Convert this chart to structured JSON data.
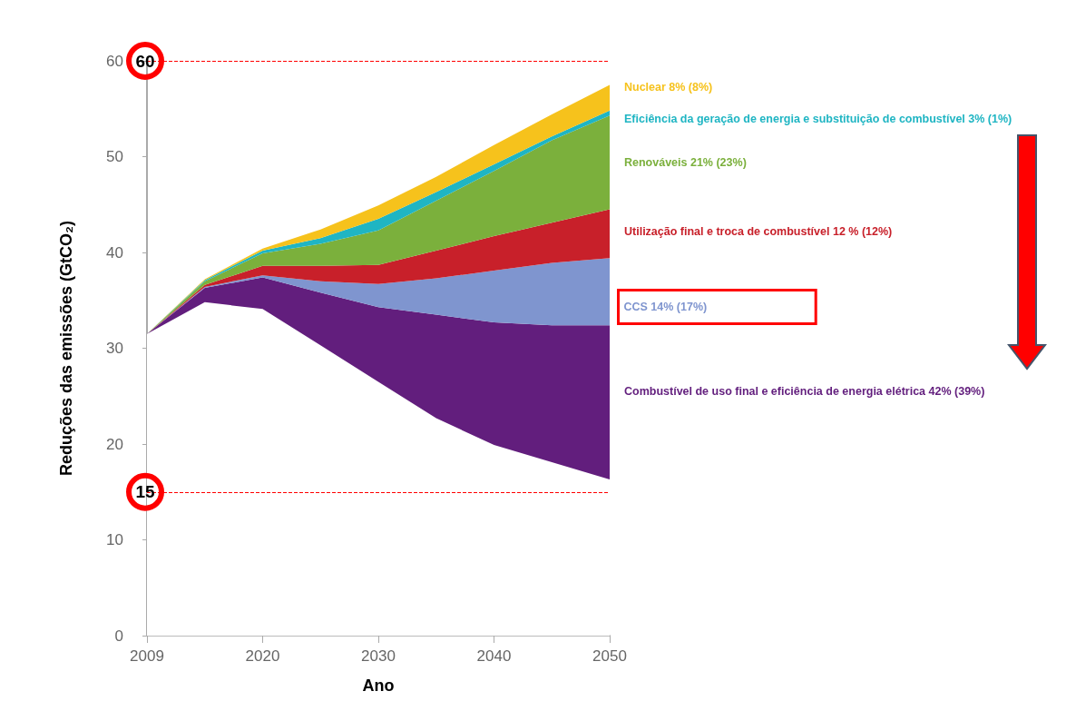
{
  "chart_data": {
    "type": "area",
    "stacked": true,
    "xlabel": "Ano",
    "ylabel": "Reduções das emissões (GtCO₂)",
    "categories": [
      "2009",
      null,
      "2020",
      null,
      "2030",
      null,
      "2040",
      null,
      "2050"
    ],
    "series": [
      {
        "color": "#ffffff",
        "values": [
          31.5,
          34.8,
          34.1,
          30.3,
          26.5,
          22.7,
          19.9,
          18.1,
          16.3
        ]
      },
      {
        "name": "Combustível de uso final e eficiência de energia elétrica 42% (39%)",
        "color": "#621e7d",
        "values": [
          0,
          1.5,
          3.3,
          5.5,
          7.8,
          10.8,
          12.8,
          14.3,
          16.1
        ]
      },
      {
        "name": "CCS 14% (17%)",
        "color": "#7f95cf",
        "values": [
          0,
          0.1,
          0.2,
          1.2,
          2.4,
          3.8,
          5.4,
          6.5,
          7.0
        ]
      },
      {
        "name": "Utilização final e troca de combustível 12 % (12%)",
        "color": "#c8202a",
        "values": [
          0,
          0.2,
          1.0,
          1.6,
          2.0,
          2.9,
          3.6,
          4.2,
          5.1
        ]
      },
      {
        "name": "Renováveis 21% (23%)",
        "color": "#7bb03c",
        "values": [
          0,
          0.4,
          1.3,
          2.3,
          3.6,
          5.2,
          6.8,
          8.6,
          9.8
        ]
      },
      {
        "name": "Eficiência da geração de energia e substituição de combustível 3% (1%)",
        "color": "#1fb5c3",
        "values": [
          0,
          0.1,
          0.3,
          0.6,
          1.2,
          0.9,
          0.7,
          0.4,
          0.5
        ]
      },
      {
        "name": "Nuclear 8% (8%)",
        "color": "#f6c21c",
        "values": [
          0,
          0.1,
          0.2,
          0.9,
          1.4,
          1.6,
          2.0,
          2.3,
          2.7
        ]
      }
    ],
    "ylim": [
      0,
      60
    ],
    "yticks": [
      0,
      10,
      20,
      30,
      40,
      50,
      60
    ],
    "ref_lines": [
      {
        "axis": "y",
        "value": 60,
        "label": "60",
        "color": "#ff0000",
        "line_style": "dashed"
      },
      {
        "axis": "y",
        "value": 15,
        "label": "15",
        "color": "#ff0000",
        "line_style": "dashed"
      }
    ],
    "grid": false,
    "legend": false
  }
}
